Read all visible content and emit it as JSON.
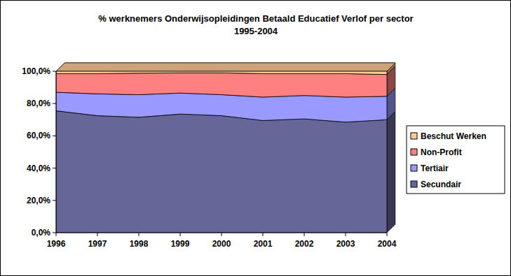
{
  "chart_data": {
    "type": "area",
    "title": "% werknemers Onderwijsopleidingen Betaald Educatief Verlof per sector",
    "subtitle": "1995-2004",
    "stacked": true,
    "legend": "right",
    "grid": true,
    "categories": [
      "1996",
      "1997",
      "1998",
      "1999",
      "2000",
      "2001",
      "2002",
      "2003",
      "2004"
    ],
    "series": [
      {
        "name": "Secundair",
        "color": "#666699",
        "values": [
          75.5,
          72.5,
          71.5,
          73.5,
          72.5,
          69.5,
          70.5,
          68.5,
          70
        ]
      },
      {
        "name": "Tertiair",
        "color": "#9999ff",
        "values": [
          11.5,
          13.5,
          14,
          13,
          13,
          14.5,
          14.5,
          15.5,
          14.5
        ]
      },
      {
        "name": "Non-Profit",
        "color": "#ff8080",
        "values": [
          11.5,
          12.5,
          13.3,
          12.5,
          13.5,
          14.5,
          13.5,
          14.5,
          13.5
        ]
      },
      {
        "name": "Beschut Werken",
        "color": "#ffcc99",
        "values": [
          1.5,
          1.5,
          1.2,
          1,
          1,
          1.5,
          1.5,
          1.5,
          2
        ]
      }
    ],
    "ylim": [
      0,
      100
    ],
    "yticks": [
      {
        "value": 0,
        "label": "0,0%"
      },
      {
        "value": 20,
        "label": "20,0%"
      },
      {
        "value": 40,
        "label": "40,0%"
      },
      {
        "value": 60,
        "label": "60,0%"
      },
      {
        "value": 80,
        "label": "80,0%"
      },
      {
        "value": 100,
        "label": "100,0%"
      }
    ]
  }
}
